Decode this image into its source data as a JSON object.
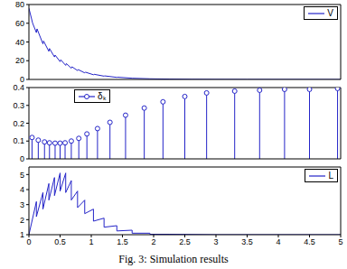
{
  "caption": "Fig. 3: Simulation results",
  "chart_data": [
    {
      "type": "line",
      "xlim": [
        0,
        5
      ],
      "xticks": [
        0,
        0.5,
        1,
        1.5,
        2,
        2.5,
        3,
        3.5,
        4,
        4.5,
        5
      ],
      "ylim": [
        0,
        80
      ],
      "yticks": [
        0,
        20,
        40,
        60,
        80
      ],
      "grid": false,
      "legend": "upper right",
      "tick_labels": "y",
      "series": [
        {
          "name": "V",
          "color": "#2424c8",
          "line_style": "solid",
          "x": [
            0,
            0.06,
            0.12,
            0.13,
            0.225,
            0.235,
            0.32,
            0.33,
            0.41,
            0.42,
            0.5,
            0.51,
            0.59,
            0.6,
            0.68,
            0.69,
            0.78,
            0.79,
            0.895,
            0.905,
            1.035,
            1.045,
            1.205,
            1.215,
            1.41,
            1.42,
            1.655,
            1.94,
            2.26,
            2.61,
            3,
            3.5,
            4,
            5
          ],
          "values": [
            76,
            60,
            50,
            54,
            38,
            41,
            30,
            33,
            24,
            26,
            19,
            21,
            15,
            17,
            12,
            13.5,
            9.5,
            10.5,
            7,
            7.8,
            5,
            5.5,
            3.5,
            3.8,
            2.2,
            2.4,
            1.3,
            0.7,
            0.4,
            0.2,
            0.1,
            0.05,
            0.02,
            0
          ]
        }
      ]
    },
    {
      "type": "stem",
      "xlim": [
        0,
        5
      ],
      "xticks": [
        0,
        0.5,
        1,
        1.5,
        2,
        2.5,
        3,
        3.5,
        4,
        4.5,
        5
      ],
      "ylim": [
        0,
        0.4
      ],
      "yticks": [
        0,
        0.1,
        0.2,
        0.3,
        0.4
      ],
      "grid": false,
      "legend": "upper left",
      "tick_labels": "y",
      "series": [
        {
          "name": "δₖ",
          "color": "#2424c8",
          "marker": "o",
          "x": [
            0.05,
            0.15,
            0.25,
            0.33,
            0.42,
            0.5,
            0.58,
            0.68,
            0.8,
            0.93,
            1.1,
            1.3,
            1.55,
            1.85,
            2.15,
            2.5,
            2.85,
            3.3,
            3.7,
            4.1,
            4.5,
            4.95
          ],
          "values": [
            0.12,
            0.105,
            0.095,
            0.09,
            0.088,
            0.088,
            0.09,
            0.1,
            0.115,
            0.14,
            0.17,
            0.205,
            0.245,
            0.285,
            0.32,
            0.35,
            0.37,
            0.38,
            0.385,
            0.39,
            0.39,
            0.395
          ]
        }
      ]
    },
    {
      "type": "line",
      "xlim": [
        0,
        5
      ],
      "xticks": [
        0,
        0.5,
        1,
        1.5,
        2,
        2.5,
        3,
        3.5,
        4,
        4.5,
        5
      ],
      "ylim": [
        1,
        5.5
      ],
      "yticks": [
        1,
        2,
        3,
        4,
        5
      ],
      "grid": false,
      "legend": "upper right",
      "series": [
        {
          "name": "L",
          "color": "#2424c8",
          "line_style": "solid",
          "x": [
            0,
            0.12,
            0.12,
            0.225,
            0.225,
            0.32,
            0.32,
            0.41,
            0.41,
            0.5,
            0.5,
            0.59,
            0.59,
            0.68,
            0.68,
            0.78,
            0.78,
            0.895,
            0.895,
            1.035,
            1.035,
            1.205,
            1.205,
            1.41,
            1.41,
            1.655,
            1.655,
            1.94,
            1.94,
            2.26,
            3,
            5
          ],
          "values": [
            1,
            3.2,
            2.2,
            3.8,
            2.7,
            4.4,
            3.3,
            4.8,
            3.6,
            5.1,
            3.9,
            5.1,
            3.8,
            4.6,
            3.3,
            3.9,
            2.8,
            3.3,
            2.4,
            2.7,
            1.9,
            2.1,
            1.5,
            1.6,
            1.25,
            1.3,
            1.1,
            1.1,
            1.03,
            1.03,
            1,
            1
          ]
        }
      ]
    }
  ]
}
